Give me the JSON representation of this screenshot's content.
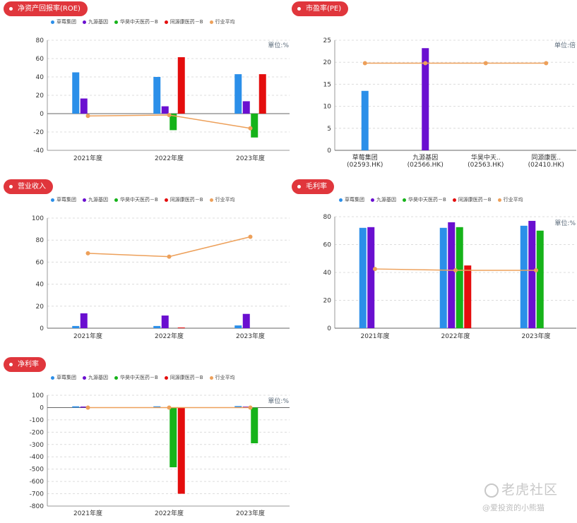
{
  "legend_items": [
    {
      "name": "草莓集团",
      "color": "#2b8fe9"
    },
    {
      "name": "九源基因",
      "color": "#6a0fd0"
    },
    {
      "name": "华昊中天医药－B",
      "color": "#16b31a"
    },
    {
      "name": "同源康医药－B",
      "color": "#e40d0d"
    },
    {
      "name": "行业平均",
      "color": "#eda05a"
    }
  ],
  "watermark": {
    "title": "老虎社区",
    "subtitle": "@爱投资的小熊猫"
  },
  "chart_data": [
    {
      "id": "roe",
      "type": "bar",
      "title": "净资产回报率(ROE)",
      "unit_label": "單位:%",
      "categories": [
        "2021年度",
        "2022年度",
        "2023年度"
      ],
      "ylim": [
        -40,
        80
      ],
      "yticks": [
        -40,
        -20,
        0,
        20,
        40,
        60,
        80
      ],
      "series": [
        {
          "name": "草莓集团",
          "values": [
            45,
            40,
            43
          ]
        },
        {
          "name": "九源基因",
          "values": [
            16.5,
            8,
            13.5
          ]
        },
        {
          "name": "华昊中天医药－B",
          "values": [
            null,
            -18,
            -26
          ]
        },
        {
          "name": "同源康医药－B",
          "values": [
            null,
            61.5,
            43
          ]
        }
      ],
      "avg_line": {
        "name": "行业平均",
        "values": [
          -2.5,
          -1.5,
          -16
        ]
      }
    },
    {
      "id": "pe",
      "type": "bar",
      "title": "市盈率(PE)",
      "unit_label": "单位:倍",
      "categories": [
        "草莓集团\n(02593.HK)",
        "九源基因\n(02566.HK)",
        "华昊中天..\n(02563.HK)",
        "同源康医..\n(02410.HK)"
      ],
      "ylim": [
        0,
        25
      ],
      "yticks": [
        0,
        5,
        10,
        15,
        20,
        25
      ],
      "series": [
        {
          "name": "市盈率",
          "values": [
            13.5,
            23.2,
            null,
            null
          ]
        }
      ],
      "avg_line": {
        "name": "行业平均",
        "values": [
          19.8,
          19.8,
          19.8,
          19.8
        ]
      }
    },
    {
      "id": "revenue",
      "type": "bar",
      "title": "营业收入",
      "unit_label": "",
      "categories": [
        "2021年度",
        "2022年度",
        "2023年度"
      ],
      "ylim": [
        0,
        100
      ],
      "yticks": [
        0,
        20,
        40,
        60,
        80,
        100
      ],
      "series": [
        {
          "name": "草莓集团",
          "values": [
            2,
            2,
            2.5
          ]
        },
        {
          "name": "九源基因",
          "values": [
            13.5,
            11.5,
            13
          ]
        },
        {
          "name": "华昊中天医药－B",
          "values": [
            null,
            null,
            null
          ]
        },
        {
          "name": "同源康医药－B",
          "values": [
            null,
            0.5,
            null
          ]
        }
      ],
      "avg_line": {
        "name": "行业平均",
        "values": [
          68,
          65,
          83
        ]
      }
    },
    {
      "id": "gross",
      "type": "bar",
      "title": "毛利率",
      "unit_label": "單位:%",
      "categories": [
        "2021年度",
        "2022年度",
        "2023年度"
      ],
      "ylim": [
        0,
        80
      ],
      "yticks": [
        0,
        20,
        40,
        60,
        80
      ],
      "series": [
        {
          "name": "草莓集团",
          "values": [
            72,
            72,
            73.5
          ]
        },
        {
          "name": "九源基因",
          "values": [
            72.5,
            76,
            77
          ]
        },
        {
          "name": "华昊中天医药－B",
          "values": [
            null,
            72.5,
            70
          ]
        },
        {
          "name": "同源康医药－B",
          "values": [
            null,
            45,
            null
          ]
        }
      ],
      "avg_line": {
        "name": "行业平均",
        "values": [
          42.5,
          41.5,
          41.5
        ]
      }
    },
    {
      "id": "net",
      "type": "bar",
      "title": "净利率",
      "unit_label": "單位:%",
      "categories": [
        "2021年度",
        "2022年度",
        "2023年度"
      ],
      "ylim": [
        -800,
        100
      ],
      "yticks": [
        -800,
        -700,
        -600,
        -500,
        -400,
        -300,
        -200,
        -100,
        0,
        100
      ],
      "series": [
        {
          "name": "草莓集团",
          "values": [
            10,
            10,
            12
          ]
        },
        {
          "name": "九源基因",
          "values": [
            8,
            null,
            8
          ]
        },
        {
          "name": "华昊中天医药－B",
          "values": [
            null,
            -485,
            -290
          ]
        },
        {
          "name": "同源康医药－B",
          "values": [
            null,
            -700,
            null
          ]
        }
      ],
      "avg_line": {
        "name": "行业平均",
        "values": [
          0,
          0,
          0
        ]
      }
    }
  ]
}
